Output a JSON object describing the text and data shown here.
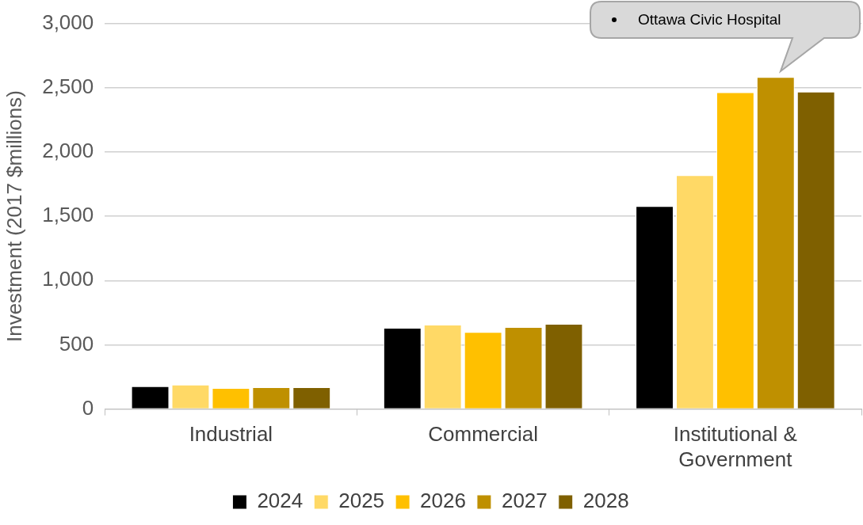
{
  "chart_data": {
    "type": "bar",
    "ylabel": "Investment (2017 $millions)",
    "categories": [
      "Industrial",
      "Commercial",
      "Institutional & Government"
    ],
    "series": [
      {
        "name": "2024",
        "color": "#000000",
        "values": [
          177,
          632,
          1579
        ]
      },
      {
        "name": "2025",
        "color": "#ffd966",
        "values": [
          190,
          657,
          1819
        ]
      },
      {
        "name": "2026",
        "color": "#ffc000",
        "values": [
          164,
          600,
          2464
        ]
      },
      {
        "name": "2027",
        "color": "#bf9000",
        "values": [
          170,
          638,
          2584
        ]
      },
      {
        "name": "2028",
        "color": "#7f6000",
        "values": [
          170,
          663,
          2470
        ]
      }
    ],
    "ylim": [
      0,
      3000
    ],
    "yticks": [
      {
        "value": 0,
        "label": "0"
      },
      {
        "value": 500,
        "label": "500"
      },
      {
        "value": 1000,
        "label": "1,000"
      },
      {
        "value": 1500,
        "label": "1,500"
      },
      {
        "value": 2000,
        "label": "2,000"
      },
      {
        "value": 2500,
        "label": "2,500"
      },
      {
        "value": 3000,
        "label": "3,000"
      }
    ],
    "grid": "y",
    "legend": "bottom",
    "annotations": [
      "Ottawa Civic Hospital"
    ]
  }
}
